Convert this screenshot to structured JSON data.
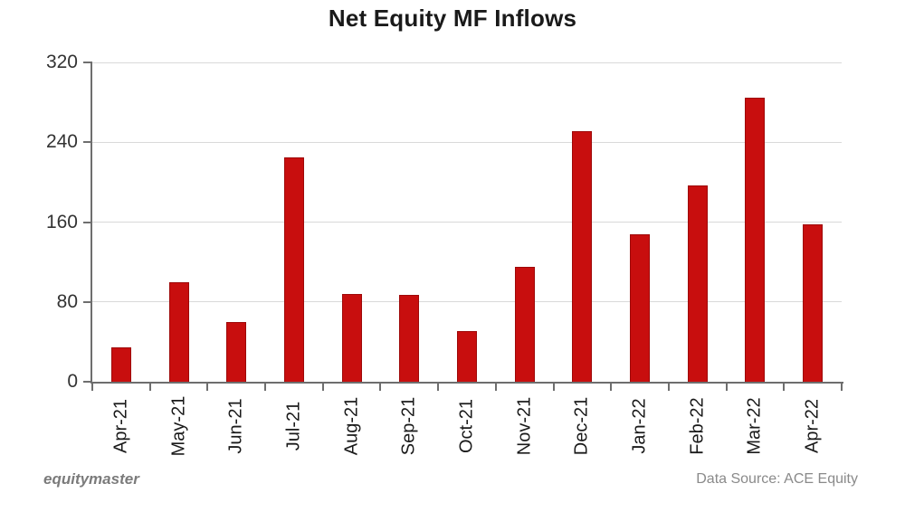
{
  "title": "Net Equity MF Inflows",
  "footer": {
    "brand": "equitymaster",
    "source": "Data Source: ACE Equity"
  },
  "chart_data": {
    "type": "bar",
    "title": "Net Equity MF Inflows",
    "categories": [
      "Apr-21",
      "May-21",
      "Jun-21",
      "Jul-21",
      "Aug-21",
      "Sep-21",
      "Oct-21",
      "Nov-21",
      "Dec-21",
      "Jan-22",
      "Feb-22",
      "Mar-22",
      "Apr-22"
    ],
    "values": [
      34,
      100,
      60,
      225,
      88,
      87,
      51,
      115,
      251,
      148,
      197,
      285,
      158
    ],
    "xlabel": "",
    "ylabel": "",
    "ylim": [
      0,
      320
    ],
    "yticks": [
      0,
      80,
      160,
      240,
      320
    ],
    "grid": "horizontal-light",
    "legend": "none",
    "bar_color": "#c80e0e",
    "bar_border_color": "#9e0909",
    "axis_color": "#6e6e6e",
    "gridline_color": "#d9d9d9",
    "ytick_label_color": "#333333",
    "xtick_label_color": "#1a1a1a"
  }
}
